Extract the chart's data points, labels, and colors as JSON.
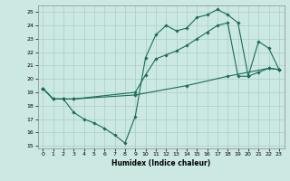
{
  "xlabel": "Humidex (Indice chaleur)",
  "bg_color": "#cce8e2",
  "grid_color": "#aacccc",
  "line_color": "#1a6b5a",
  "ylim_min": 14.8,
  "ylim_max": 25.5,
  "xlim_min": -0.5,
  "xlim_max": 23.5,
  "yticks": [
    15,
    16,
    17,
    18,
    19,
    20,
    21,
    22,
    23,
    24,
    25
  ],
  "xticks": [
    0,
    1,
    2,
    3,
    4,
    5,
    6,
    7,
    8,
    9,
    10,
    11,
    12,
    13,
    14,
    15,
    16,
    17,
    18,
    19,
    20,
    21,
    22,
    23
  ],
  "line1_x": [
    0,
    1,
    2,
    3,
    4,
    5,
    6,
    7,
    8,
    9,
    10,
    11,
    12,
    13,
    14,
    15,
    16,
    17,
    18,
    19,
    20,
    21,
    22,
    23
  ],
  "line1_y": [
    19.3,
    18.5,
    18.5,
    17.5,
    17.0,
    16.7,
    16.3,
    15.8,
    15.2,
    17.2,
    21.6,
    23.3,
    24.0,
    23.6,
    23.8,
    24.6,
    24.8,
    25.2,
    24.8,
    24.2,
    20.2,
    22.8,
    22.3,
    20.7
  ],
  "line2_x": [
    0,
    1,
    2,
    3,
    9,
    10,
    11,
    12,
    13,
    14,
    15,
    16,
    17,
    18,
    19,
    20,
    21,
    22,
    23
  ],
  "line2_y": [
    19.3,
    18.5,
    18.5,
    18.5,
    19.0,
    20.3,
    21.5,
    21.8,
    22.1,
    22.5,
    23.0,
    23.5,
    24.0,
    24.2,
    20.2,
    20.2,
    20.5,
    20.8,
    20.7
  ],
  "line3_x": [
    0,
    1,
    2,
    3,
    9,
    14,
    18,
    22,
    23
  ],
  "line3_y": [
    19.3,
    18.5,
    18.5,
    18.5,
    18.8,
    19.5,
    20.2,
    20.8,
    20.7
  ]
}
